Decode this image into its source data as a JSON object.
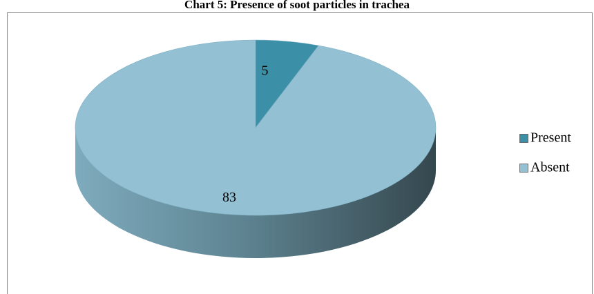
{
  "chart_data": {
    "type": "pie",
    "title": "Chart 5: Presence of soot particles in trachea",
    "categories": [
      "Present",
      "Absent"
    ],
    "values": [
      5,
      83
    ],
    "colors": [
      "#3b8fa6",
      "#93c0d3"
    ],
    "legend": "right"
  }
}
